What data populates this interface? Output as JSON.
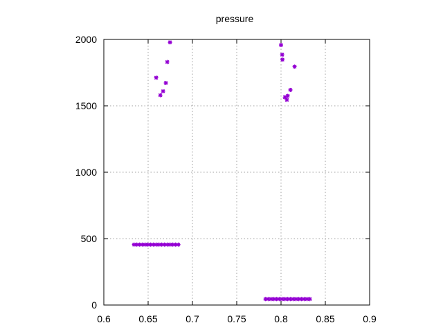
{
  "chart_data": {
    "type": "scatter",
    "title": "pressure",
    "xlabel": "",
    "ylabel": "",
    "xlim": [
      0.6,
      0.9
    ],
    "ylim": [
      0,
      2000
    ],
    "xticks": [
      0.6,
      0.65,
      0.7,
      0.75,
      0.8,
      0.85,
      0.9
    ],
    "xtick_labels": [
      "0.6",
      "0.65",
      "0.7",
      "0.75",
      "0.8",
      "0.85",
      "0.9"
    ],
    "yticks": [
      0,
      500,
      1000,
      1500,
      2000
    ],
    "ytick_labels": [
      "0",
      "500",
      "1000",
      "1500",
      "2000"
    ],
    "grid": true,
    "marker_color": "#9400d3",
    "series": [
      {
        "name": "pressure",
        "points": [
          {
            "x": 0.6341,
            "y": 455
          },
          {
            "x": 0.6372,
            "y": 455
          },
          {
            "x": 0.6403,
            "y": 455
          },
          {
            "x": 0.6434,
            "y": 455
          },
          {
            "x": 0.6466,
            "y": 455
          },
          {
            "x": 0.6497,
            "y": 455
          },
          {
            "x": 0.6528,
            "y": 455
          },
          {
            "x": 0.6559,
            "y": 455
          },
          {
            "x": 0.6591,
            "y": 455
          },
          {
            "x": 0.6622,
            "y": 455
          },
          {
            "x": 0.6653,
            "y": 455
          },
          {
            "x": 0.6684,
            "y": 455
          },
          {
            "x": 0.6716,
            "y": 455
          },
          {
            "x": 0.6747,
            "y": 455
          },
          {
            "x": 0.6778,
            "y": 455
          },
          {
            "x": 0.6809,
            "y": 455
          },
          {
            "x": 0.6841,
            "y": 455
          },
          {
            "x": 0.6591,
            "y": 1712
          },
          {
            "x": 0.6638,
            "y": 1580
          },
          {
            "x": 0.6669,
            "y": 1610
          },
          {
            "x": 0.67,
            "y": 1672
          },
          {
            "x": 0.6716,
            "y": 1830
          },
          {
            "x": 0.6747,
            "y": 1978
          },
          {
            "x": 0.7825,
            "y": 45
          },
          {
            "x": 0.7856,
            "y": 45
          },
          {
            "x": 0.7888,
            "y": 45
          },
          {
            "x": 0.7919,
            "y": 45
          },
          {
            "x": 0.795,
            "y": 45
          },
          {
            "x": 0.7981,
            "y": 45
          },
          {
            "x": 0.8013,
            "y": 45
          },
          {
            "x": 0.8044,
            "y": 45
          },
          {
            "x": 0.8075,
            "y": 45
          },
          {
            "x": 0.8106,
            "y": 45
          },
          {
            "x": 0.8138,
            "y": 45
          },
          {
            "x": 0.8169,
            "y": 45
          },
          {
            "x": 0.82,
            "y": 45
          },
          {
            "x": 0.8231,
            "y": 45
          },
          {
            "x": 0.8263,
            "y": 45
          },
          {
            "x": 0.8294,
            "y": 45
          },
          {
            "x": 0.8325,
            "y": 45
          },
          {
            "x": 0.8,
            "y": 1958
          },
          {
            "x": 0.8013,
            "y": 1885
          },
          {
            "x": 0.8016,
            "y": 1848
          },
          {
            "x": 0.8044,
            "y": 1565
          },
          {
            "x": 0.8066,
            "y": 1545
          },
          {
            "x": 0.8075,
            "y": 1575
          },
          {
            "x": 0.8106,
            "y": 1620
          },
          {
            "x": 0.8153,
            "y": 1795
          }
        ]
      }
    ]
  }
}
